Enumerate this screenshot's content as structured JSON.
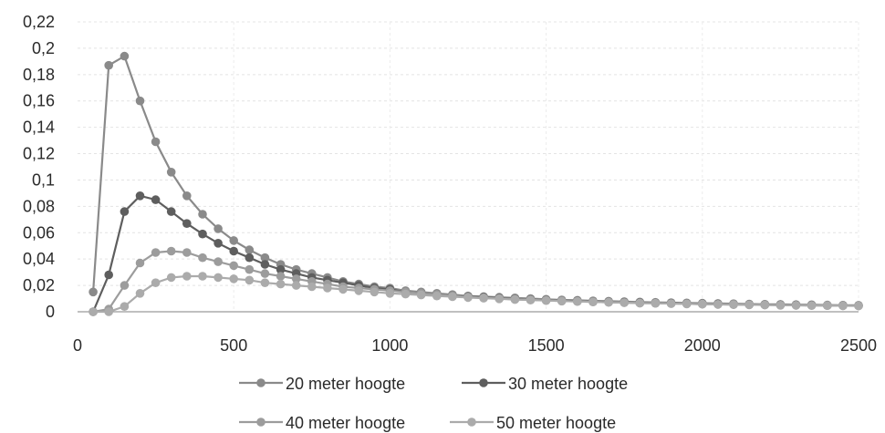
{
  "chart_data": {
    "type": "line",
    "title": "",
    "xlabel": "",
    "ylabel": "",
    "xlim": [
      0,
      2500
    ],
    "ylim": [
      0,
      0.22
    ],
    "x_ticks": [
      "0",
      "500",
      "1000",
      "1500",
      "2000",
      "2500"
    ],
    "y_ticks": [
      "0",
      "0,02",
      "0,04",
      "0,06",
      "0,08",
      "0,1",
      "0,12",
      "0,14",
      "0,16",
      "0,18",
      "0,2",
      "0,22"
    ],
    "grid": true,
    "legend_position": "bottom",
    "x": [
      50,
      100,
      150,
      200,
      250,
      300,
      350,
      400,
      450,
      500,
      550,
      600,
      650,
      700,
      750,
      800,
      850,
      900,
      950,
      1000,
      1050,
      1100,
      1150,
      1200,
      1250,
      1300,
      1350,
      1400,
      1450,
      1500,
      1550,
      1600,
      1650,
      1700,
      1750,
      1800,
      1850,
      1900,
      1950,
      2000,
      2050,
      2100,
      2150,
      2200,
      2250,
      2300,
      2350,
      2400,
      2450,
      2500
    ],
    "series": [
      {
        "name": "20 meter hoogte",
        "color": "#8a8a8a",
        "values": [
          0.015,
          0.187,
          0.194,
          0.16,
          0.129,
          0.106,
          0.088,
          0.074,
          0.063,
          0.054,
          0.047,
          0.041,
          0.036,
          0.032,
          0.029,
          0.026,
          0.023,
          0.021,
          0.019,
          0.018,
          0.016,
          0.015,
          0.014,
          0.013,
          0.012,
          0.0115,
          0.011,
          0.0105,
          0.01,
          0.0095,
          0.009,
          0.0087,
          0.0083,
          0.008,
          0.0077,
          0.0074,
          0.0071,
          0.0069,
          0.0067,
          0.0065,
          0.0063,
          0.0061,
          0.0059,
          0.0057,
          0.0056,
          0.0054,
          0.0053,
          0.0051,
          0.005,
          0.0049
        ]
      },
      {
        "name": "30 meter hoogte",
        "color": "#5e5e5e",
        "values": [
          0.0,
          0.028,
          0.076,
          0.088,
          0.085,
          0.076,
          0.067,
          0.059,
          0.052,
          0.046,
          0.041,
          0.036,
          0.032,
          0.029,
          0.026,
          0.024,
          0.022,
          0.02,
          0.018,
          0.017,
          0.015,
          0.014,
          0.013,
          0.012,
          0.0115,
          0.011,
          0.0103,
          0.0097,
          0.0092,
          0.0088,
          0.0084,
          0.008,
          0.0077,
          0.0074,
          0.0071,
          0.0068,
          0.0066,
          0.0064,
          0.0062,
          0.006,
          0.0058,
          0.0056,
          0.0055,
          0.0053,
          0.0052,
          0.0051,
          0.005,
          0.0048,
          0.0047,
          0.0046
        ]
      },
      {
        "name": "40 meter hoogte",
        "color": "#9c9c9c",
        "values": [
          0.0,
          0.002,
          0.02,
          0.037,
          0.045,
          0.046,
          0.045,
          0.041,
          0.038,
          0.035,
          0.032,
          0.029,
          0.027,
          0.025,
          0.023,
          0.021,
          0.019,
          0.018,
          0.017,
          0.016,
          0.015,
          0.014,
          0.013,
          0.012,
          0.0112,
          0.0106,
          0.01,
          0.0095,
          0.009,
          0.0086,
          0.0082,
          0.0078,
          0.0075,
          0.0072,
          0.0069,
          0.0066,
          0.0064,
          0.0062,
          0.006,
          0.0058,
          0.0056,
          0.0055,
          0.0053,
          0.0052,
          0.005,
          0.0049,
          0.0048,
          0.0047,
          0.0046,
          0.0045
        ]
      },
      {
        "name": "50 meter hoogte",
        "color": "#ababab",
        "values": [
          0.0,
          0.0,
          0.004,
          0.014,
          0.022,
          0.026,
          0.027,
          0.027,
          0.026,
          0.025,
          0.024,
          0.022,
          0.021,
          0.02,
          0.019,
          0.018,
          0.017,
          0.016,
          0.015,
          0.014,
          0.0134,
          0.0127,
          0.012,
          0.0114,
          0.0108,
          0.0103,
          0.0098,
          0.0093,
          0.0089,
          0.0085,
          0.0081,
          0.0078,
          0.0075,
          0.0072,
          0.0069,
          0.0066,
          0.0064,
          0.0062,
          0.006,
          0.0058,
          0.0056,
          0.0055,
          0.0053,
          0.0052,
          0.005,
          0.0049,
          0.0048,
          0.0047,
          0.0046,
          0.0045
        ]
      }
    ]
  }
}
